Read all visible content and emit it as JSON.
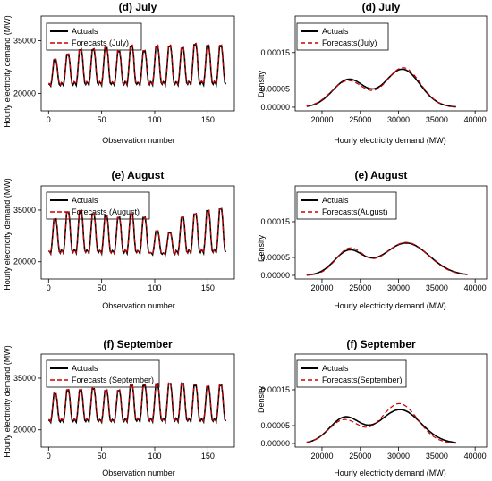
{
  "chart_data": [
    {
      "type": "line",
      "title": "(d) July",
      "kind": "timeseries",
      "xlabel": "Observation number",
      "ylabel": "Hourly electricity demand (MW)",
      "xlim": [
        -7,
        175
      ],
      "ylim": [
        15000,
        42000
      ],
      "xticks": [
        "0",
        "50",
        "100",
        "150"
      ],
      "yticks": [
        "20000",
        "35000"
      ],
      "legend": {
        "position": "top-left",
        "entries": [
          "Actuals",
          "Forecasts (July)"
        ]
      },
      "profile": {
        "n": 168,
        "base": 21500,
        "peaks": [
          29500,
          31000,
          32500,
          32500,
          33000,
          32000,
          33500,
          32000,
          33500,
          33500,
          33000,
          34000,
          33500,
          33500
        ],
        "forecast_scale": 1.01
      },
      "series": [
        {
          "name": "Actuals",
          "color": "#000000",
          "style": "solid"
        },
        {
          "name": "Forecasts (July)",
          "color": "#cc0000",
          "style": "dashed"
        }
      ]
    },
    {
      "type": "line",
      "title": "(d) July",
      "kind": "density",
      "xlabel": "Hourly electricity demand  (MW)",
      "ylabel": "Density",
      "xlim": [
        16500,
        41500
      ],
      "ylim": [
        -1e-05,
        0.00025
      ],
      "xticks": [
        "20000",
        "25000",
        "30000",
        "35000",
        "40000"
      ],
      "yticks": [
        "0.00000",
        "0.00005",
        "0.00015"
      ],
      "legend": {
        "position": "top-left",
        "entries": [
          "Actuals",
          "Forecasts(July)"
        ]
      },
      "x_range": [
        18000,
        37500
      ],
      "series": [
        {
          "name": "Actuals",
          "color": "#000000",
          "style": "solid",
          "components": [
            [
              0.4,
              23500,
              2100
            ],
            [
              0.6,
              30500,
              2300
            ]
          ]
        },
        {
          "name": "Forecasts(July)",
          "color": "#cc0000",
          "style": "dashed",
          "components": [
            [
              0.39,
              23400,
              2150
            ],
            [
              0.61,
              30600,
              2250
            ]
          ]
        }
      ]
    },
    {
      "type": "line",
      "title": "(e) August",
      "kind": "timeseries",
      "xlabel": "Observation number",
      "ylabel": "Hourly electricity demand (MW)",
      "xlim": [
        -7,
        175
      ],
      "ylim": [
        15000,
        42000
      ],
      "xticks": [
        "0",
        "50",
        "100",
        "150"
      ],
      "yticks": [
        "20000",
        "35000"
      ],
      "legend": {
        "position": "top-left",
        "entries": [
          "Actuals",
          "Forecasts (August)"
        ]
      },
      "profile": {
        "n": 168,
        "base": 21500,
        "peaks": [
          32500,
          34500,
          35000,
          34000,
          33500,
          33000,
          34000,
          33000,
          29000,
          28500,
          33000,
          34000,
          35000,
          35500
        ],
        "forecast_scale": 1.0
      },
      "series": [
        {
          "name": "Actuals",
          "color": "#000000",
          "style": "solid"
        },
        {
          "name": "Forecasts (August)",
          "color": "#cc0000",
          "style": "dashed"
        }
      ]
    },
    {
      "type": "line",
      "title": "(e) August",
      "kind": "density",
      "xlabel": "Hourly electricity demand  (MW)",
      "ylabel": "Density",
      "xlim": [
        16500,
        41500
      ],
      "ylim": [
        -1e-05,
        0.00025
      ],
      "xticks": [
        "20000",
        "25000",
        "30000",
        "35000",
        "40000"
      ],
      "yticks": [
        "0.00000",
        "0.00005",
        "0.00015"
      ],
      "legend": {
        "position": "top-left",
        "entries": [
          "Actuals",
          "Forecasts(August)"
        ]
      },
      "x_range": [
        18000,
        39000
      ],
      "series": [
        {
          "name": "Actuals",
          "color": "#000000",
          "style": "solid",
          "components": [
            [
              0.32,
              23500,
              1900
            ],
            [
              0.68,
              31000,
              3000
            ]
          ]
        },
        {
          "name": "Forecasts(August)",
          "color": "#cc0000",
          "style": "dashed",
          "components": [
            [
              0.33,
              23600,
              1800
            ],
            [
              0.67,
              31000,
              2900
            ]
          ]
        }
      ]
    },
    {
      "type": "line",
      "title": "(f) September",
      "kind": "timeseries",
      "xlabel": "Observation number",
      "ylabel": "Hourly electricity demand (MW)",
      "xlim": [
        -7,
        175
      ],
      "ylim": [
        15000,
        42000
      ],
      "xticks": [
        "0",
        "50",
        "100",
        "150"
      ],
      "yticks": [
        "20000",
        "35000"
      ],
      "legend": {
        "position": "top-left",
        "entries": [
          "Actuals",
          "Forecasts (September)"
        ]
      },
      "profile": {
        "n": 168,
        "base": 21500,
        "peaks": [
          30500,
          31500,
          31500,
          32000,
          31500,
          31500,
          33000,
          33000,
          33500,
          33500,
          33500,
          33000,
          32500,
          33000
        ],
        "forecast_scale": 1.01
      },
      "series": [
        {
          "name": "Actuals",
          "color": "#000000",
          "style": "solid"
        },
        {
          "name": "Forecasts (September)",
          "color": "#cc0000",
          "style": "dashed"
        }
      ]
    },
    {
      "type": "line",
      "title": "(f) September",
      "kind": "density",
      "xlabel": "Hourly electricity demand  (MW)",
      "ylabel": "Density",
      "xlim": [
        16500,
        41500
      ],
      "ylim": [
        -1e-05,
        0.00025
      ],
      "xticks": [
        "20000",
        "25000",
        "30000",
        "35000",
        "40000"
      ],
      "yticks": [
        "0.00000",
        "0.00005",
        "0.00015"
      ],
      "legend": {
        "position": "top-left",
        "entries": [
          "Actuals",
          "Forecasts(September)"
        ]
      },
      "x_range": [
        18000,
        37500
      ],
      "series": [
        {
          "name": "Actuals",
          "color": "#000000",
          "style": "solid",
          "components": [
            [
              0.36,
              23000,
              2000
            ],
            [
              0.64,
              30200,
              2700
            ]
          ]
        },
        {
          "name": "Forecasts(September)",
          "color": "#cc0000",
          "style": "dashed",
          "components": [
            [
              0.33,
              22900,
              2000
            ],
            [
              0.67,
              30100,
              2400
            ]
          ]
        }
      ]
    }
  ]
}
